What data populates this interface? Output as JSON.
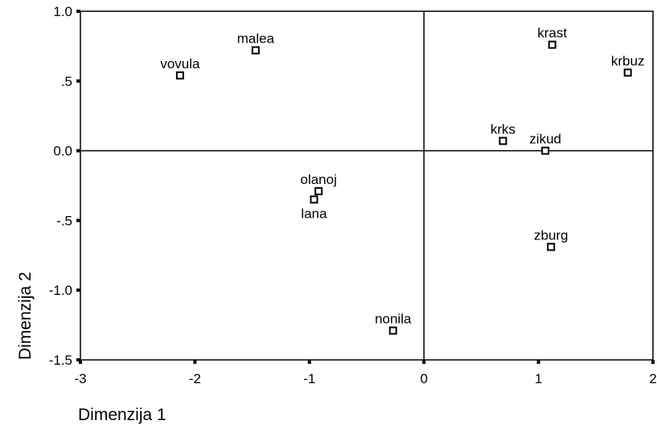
{
  "chart_data": {
    "type": "scatter",
    "title": "",
    "xlabel": "Dimenzija 1",
    "ylabel": "Dimenzija 2",
    "xlim": [
      -3,
      2
    ],
    "ylim": [
      -1.5,
      1.0
    ],
    "x_ticks": [
      -3,
      -2,
      -1,
      0,
      1,
      2
    ],
    "x_tick_labels": [
      "-3",
      "-2",
      "-1",
      "0",
      "1",
      "2"
    ],
    "y_ticks": [
      1.0,
      0.5,
      0.0,
      -0.5,
      -1.0,
      -1.5
    ],
    "y_tick_labels": [
      "1.0",
      ".5",
      "0.0",
      "-.5",
      "-1.0",
      "-1.5"
    ],
    "reference_lines": {
      "x": 0,
      "y": 0
    },
    "grid": false,
    "legend": "none",
    "marker": "hollow-square",
    "color": "#000000",
    "points": [
      {
        "label": "malea",
        "x": -1.47,
        "y": 0.72,
        "label_pos": "above"
      },
      {
        "label": "vovula",
        "x": -2.13,
        "y": 0.54,
        "label_pos": "above"
      },
      {
        "label": "krast",
        "x": 1.12,
        "y": 0.76,
        "label_pos": "above"
      },
      {
        "label": "krbuz",
        "x": 1.78,
        "y": 0.56,
        "label_pos": "above"
      },
      {
        "label": "krks",
        "x": 0.69,
        "y": 0.07,
        "label_pos": "above"
      },
      {
        "label": "zikud",
        "x": 1.06,
        "y": 0.0,
        "label_pos": "above"
      },
      {
        "label": "olanoj",
        "x": -0.92,
        "y": -0.29,
        "label_pos": "above"
      },
      {
        "label": "lana",
        "x": -0.96,
        "y": -0.35,
        "label_pos": "below"
      },
      {
        "label": "zburg",
        "x": 1.11,
        "y": -0.69,
        "label_pos": "above"
      },
      {
        "label": "nonila",
        "x": -0.27,
        "y": -1.29,
        "label_pos": "above"
      }
    ]
  }
}
